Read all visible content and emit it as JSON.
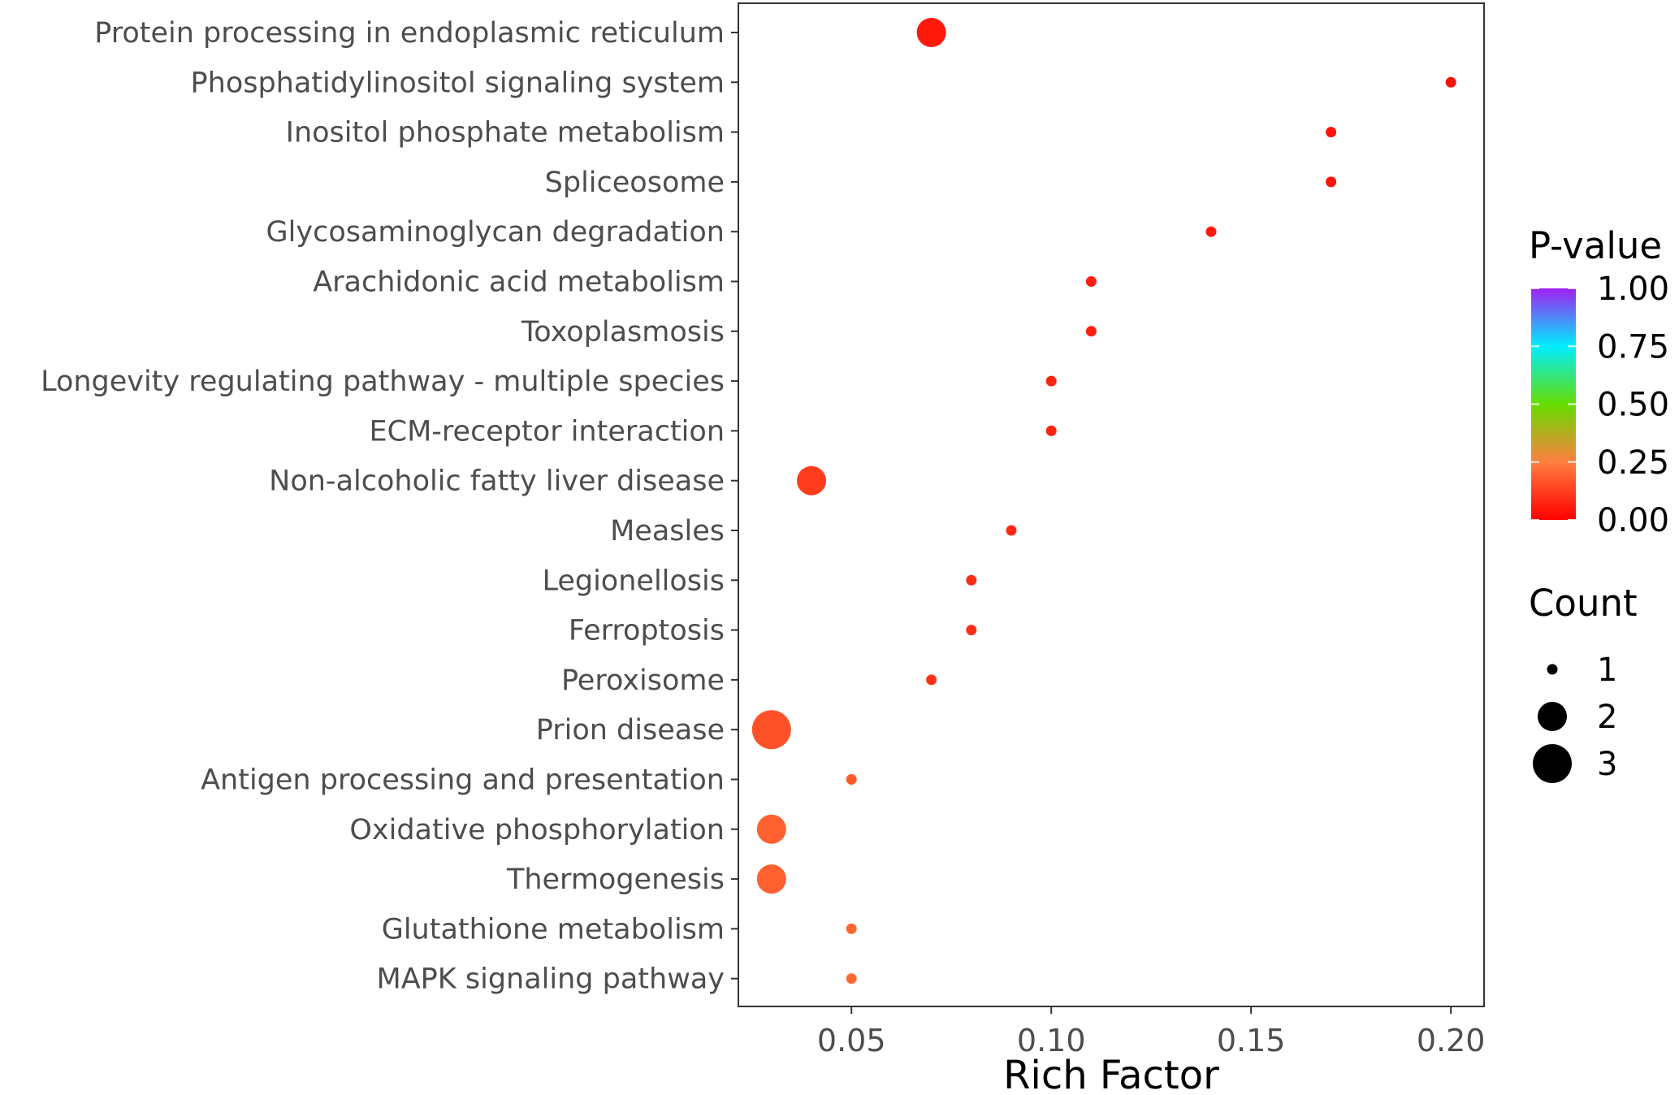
{
  "chart_data": {
    "type": "scatter",
    "title": "",
    "xlabel": "Rich Factor",
    "ylabel": "",
    "xlim": [
      0.0217,
      0.2083
    ],
    "x_ticks": [
      "0.05",
      "0.10",
      "0.15",
      "0.20"
    ],
    "x_tick_values": [
      0.05,
      0.1,
      0.15,
      0.2
    ],
    "grid": false,
    "legend_placement": "right",
    "color_legend": {
      "title": "P-value",
      "ticks": [
        "1.00",
        "0.75",
        "0.50",
        "0.25",
        "0.00"
      ],
      "tick_values": [
        1.0,
        0.75,
        0.5,
        0.25,
        0.0
      ],
      "stops": [
        {
          "value": 0.0,
          "color": "#ff0000"
        },
        {
          "value": 0.25,
          "color": "#ff7f3f"
        },
        {
          "value": 0.5,
          "color": "#66dd00"
        },
        {
          "value": 0.75,
          "color": "#00eeff"
        },
        {
          "value": 1.0,
          "color": "#a020f0"
        }
      ]
    },
    "size_legend": {
      "title": "Count",
      "values": [
        "1",
        "2",
        "3"
      ]
    },
    "points": [
      {
        "term": "Protein processing in endoplasmic reticulum",
        "rich_factor": 0.07,
        "count": 2,
        "p_value": 0.05
      },
      {
        "term": "Phosphatidylinositol signaling system",
        "rich_factor": 0.2,
        "count": 1,
        "p_value": 0.03
      },
      {
        "term": "Inositol phosphate metabolism",
        "rich_factor": 0.17,
        "count": 1,
        "p_value": 0.04
      },
      {
        "term": "Spliceosome",
        "rich_factor": 0.17,
        "count": 1,
        "p_value": 0.04
      },
      {
        "term": "Glycosaminoglycan degradation",
        "rich_factor": 0.14,
        "count": 1,
        "p_value": 0.05
      },
      {
        "term": "Arachidonic acid metabolism",
        "rich_factor": 0.11,
        "count": 1,
        "p_value": 0.06
      },
      {
        "term": "Toxoplasmosis",
        "rich_factor": 0.11,
        "count": 1,
        "p_value": 0.06
      },
      {
        "term": "Longevity regulating pathway - multiple species",
        "rich_factor": 0.1,
        "count": 1,
        "p_value": 0.07
      },
      {
        "term": "ECM-receptor interaction",
        "rich_factor": 0.1,
        "count": 1,
        "p_value": 0.07
      },
      {
        "term": "Non-alcoholic fatty liver disease",
        "rich_factor": 0.04,
        "count": 2,
        "p_value": 0.12
      },
      {
        "term": "Measles",
        "rich_factor": 0.09,
        "count": 1,
        "p_value": 0.08
      },
      {
        "term": "Legionellosis",
        "rich_factor": 0.08,
        "count": 1,
        "p_value": 0.09
      },
      {
        "term": "Ferroptosis",
        "rich_factor": 0.08,
        "count": 1,
        "p_value": 0.09
      },
      {
        "term": "Peroxisome",
        "rich_factor": 0.07,
        "count": 1,
        "p_value": 0.1
      },
      {
        "term": "Prion disease",
        "rich_factor": 0.03,
        "count": 3,
        "p_value": 0.16
      },
      {
        "term": "Antigen processing and presentation",
        "rich_factor": 0.05,
        "count": 1,
        "p_value": 0.18
      },
      {
        "term": "Oxidative phosphorylation",
        "rich_factor": 0.03,
        "count": 2,
        "p_value": 0.19
      },
      {
        "term": "Thermogenesis",
        "rich_factor": 0.03,
        "count": 2,
        "p_value": 0.19
      },
      {
        "term": "Glutathione metabolism",
        "rich_factor": 0.05,
        "count": 1,
        "p_value": 0.2
      },
      {
        "term": "MAPK signaling pathway",
        "rich_factor": 0.05,
        "count": 1,
        "p_value": 0.21
      }
    ]
  }
}
